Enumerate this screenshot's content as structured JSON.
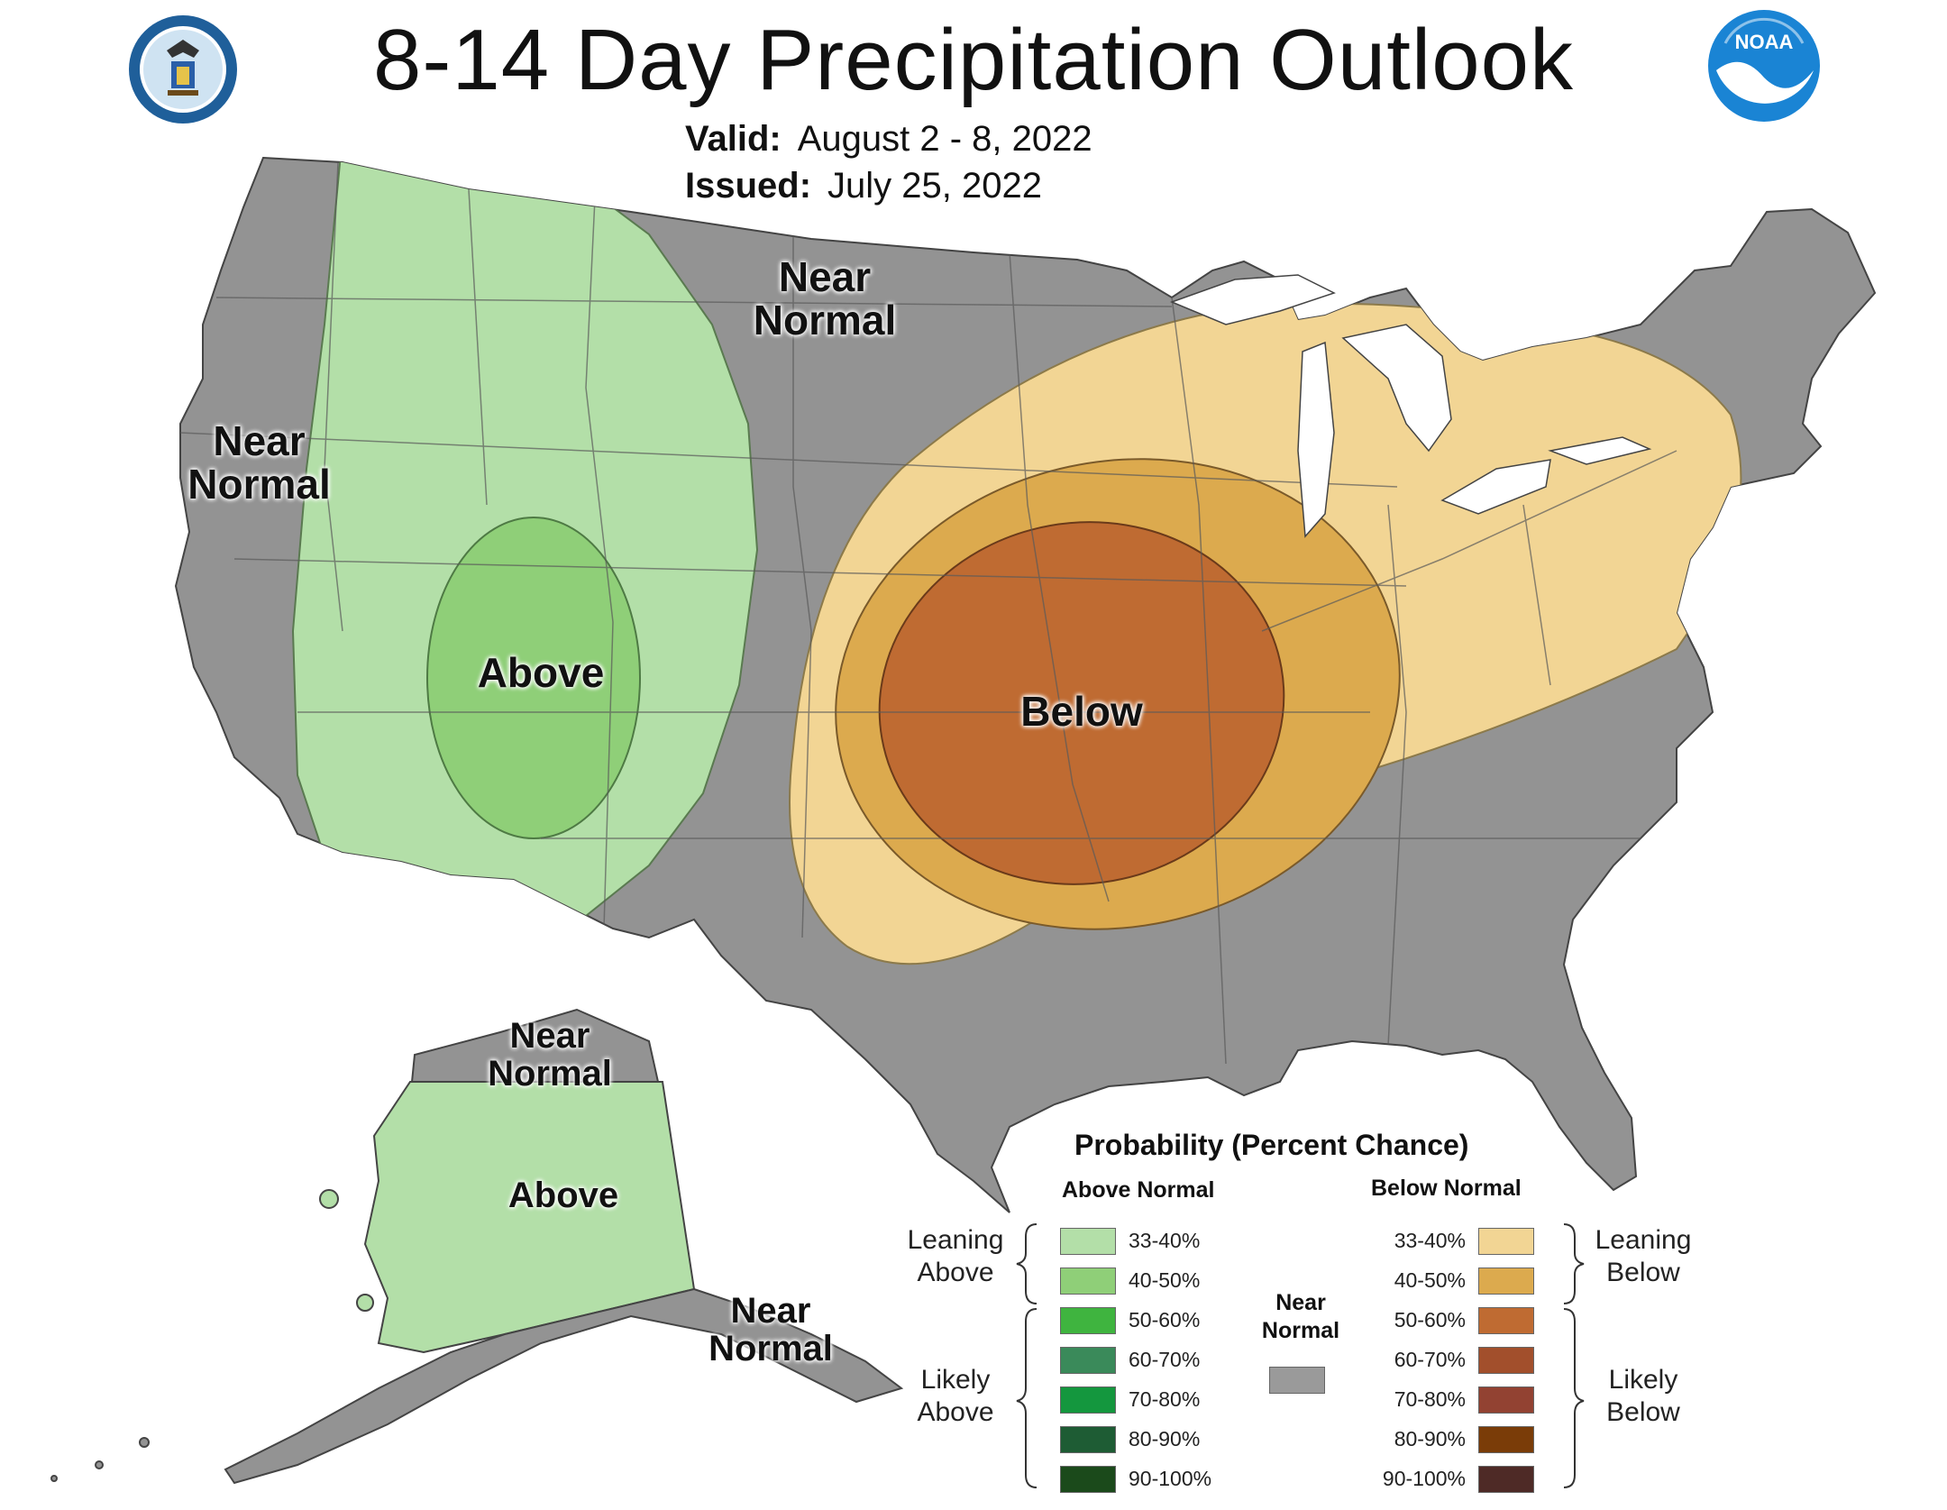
{
  "title": "8-14 Day Precipitation Outlook",
  "valid_label": "Valid:",
  "valid_value": "August 2 - 8, 2022",
  "issued_label": "Issued:",
  "issued_value": "July 25, 2022",
  "map_labels": {
    "near_normal_north": "Near Normal",
    "near_normal_west": "Near Normal",
    "above_west": "Above",
    "below_central": "Below",
    "ak_near_normal_north": "Near Normal",
    "ak_above": "Above",
    "ak_near_normal_south": "Near Normal"
  },
  "legend": {
    "title": "Probability (Percent Chance)",
    "above_header": "Above Normal",
    "below_header": "Below Normal",
    "leaning_above": "Leaning Above",
    "likely_above": "Likely Above",
    "leaning_below": "Leaning Below",
    "likely_below": "Likely Below",
    "near_normal": "Near Normal",
    "above_items": [
      {
        "label": "33-40%",
        "color": "#b3dfa8"
      },
      {
        "label": "40-50%",
        "color": "#8fcf78"
      },
      {
        "label": "50-60%",
        "color": "#3fb43f"
      },
      {
        "label": "60-70%",
        "color": "#3a8a5a"
      },
      {
        "label": "70-80%",
        "color": "#14973e"
      },
      {
        "label": "80-90%",
        "color": "#1e5c34"
      },
      {
        "label": "90-100%",
        "color": "#1b4a1b"
      }
    ],
    "below_items": [
      {
        "label": "33-40%",
        "color": "#f2d594"
      },
      {
        "label": "40-50%",
        "color": "#dcaa4e"
      },
      {
        "label": "50-60%",
        "color": "#bf6b32"
      },
      {
        "label": "60-70%",
        "color": "#a24f2c"
      },
      {
        "label": "70-80%",
        "color": "#924232"
      },
      {
        "label": "80-90%",
        "color": "#7a3c08"
      },
      {
        "label": "90-100%",
        "color": "#4e2a26"
      }
    ],
    "near_normal_color": "#9a9a9a"
  },
  "colors": {
    "near_normal": "#939393",
    "leaning_above": "#b3dfa8",
    "above_40_50": "#8fcf78",
    "leaning_below": "#f2d594",
    "below_40_50": "#dcaa4e",
    "below_50_60": "#bf6b32"
  }
}
